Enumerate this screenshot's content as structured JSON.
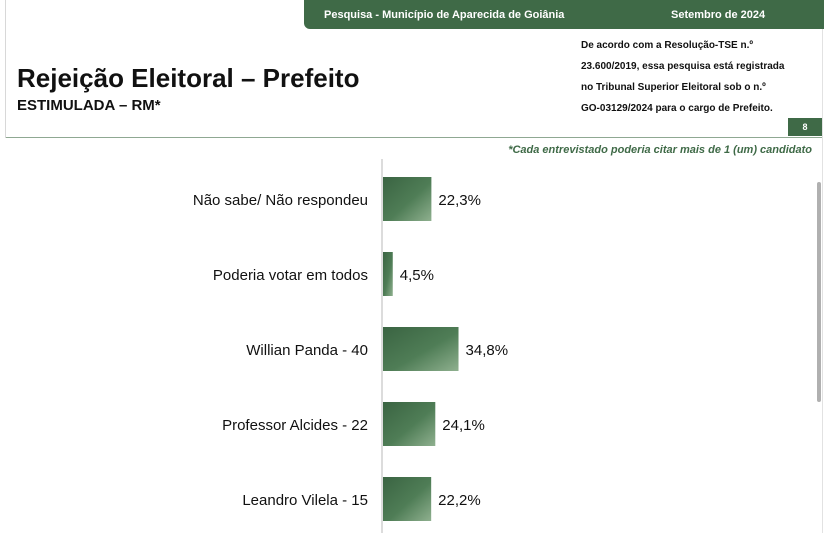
{
  "header": {
    "survey": "Pesquisa - Município de Aparecida de Goiânia",
    "date": "Setembro de 2024",
    "title": "Rejeição Eleitoral – Prefeito",
    "subtitle": "ESTIMULADA – RM*",
    "legal_lines": [
      "De acordo com a Resolução-TSE n.º",
      "23.600/2019, essa pesquisa está registrada",
      "no Tribunal Superior Eleitoral sob o n.º",
      "GO-03129/2024 para o cargo de Prefeito."
    ],
    "page": "8",
    "note": "*Cada entrevistado poderia citar mais de 1 (um) candidato"
  },
  "colors": {
    "bar": "#3f6a47",
    "bar_light": "#8fb08f",
    "accent": "#3f6a47"
  },
  "chart_data": {
    "type": "bar",
    "orientation": "horizontal",
    "categories": [
      "Não sabe/ Não respondeu",
      "Poderia votar em todos",
      "Willian Panda - 40",
      "Professor Alcides - 22",
      "Leandro Vilela - 15"
    ],
    "values": [
      22.3,
      4.5,
      34.8,
      24.1,
      22.2
    ],
    "value_labels": [
      "22,3%",
      "4,5%",
      "34,8%",
      "24,1%",
      "22,2%"
    ],
    "unit": "%",
    "grid": false
  }
}
